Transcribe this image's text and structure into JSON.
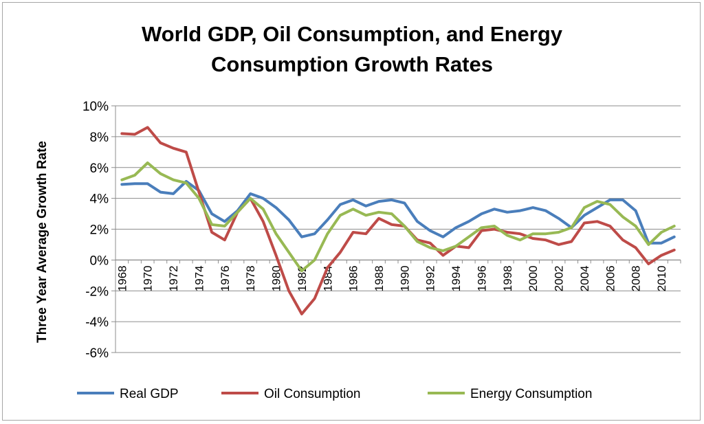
{
  "chart_data": {
    "type": "line",
    "title_line1": "World GDP,  Oil Consumption, and Energy",
    "title_line2": "Consumption Growth Rates",
    "ylabel": "Three Year Average Growth Rate",
    "xlabel": "",
    "ylim": [
      -6,
      10
    ],
    "yticks": [
      "10%",
      "8%",
      "6%",
      "4%",
      "2%",
      "0%",
      "-2%",
      "-4%",
      "-6%"
    ],
    "ytick_values": [
      10,
      8,
      6,
      4,
      2,
      0,
      -2,
      -4,
      -6
    ],
    "x": [
      1968,
      1969,
      1970,
      1971,
      1972,
      1973,
      1974,
      1975,
      1976,
      1977,
      1978,
      1979,
      1980,
      1981,
      1982,
      1983,
      1984,
      1985,
      1986,
      1987,
      1988,
      1989,
      1990,
      1991,
      1992,
      1993,
      1994,
      1995,
      1996,
      1997,
      1998,
      1999,
      2000,
      2001,
      2002,
      2003,
      2004,
      2005,
      2006,
      2007,
      2008,
      2009,
      2010,
      2011
    ],
    "xtick_labels": [
      "1968",
      "1970",
      "1972",
      "1974",
      "1976",
      "1978",
      "1980",
      "1982",
      "1984",
      "1986",
      "1988",
      "1990",
      "1992",
      "1994",
      "1996",
      "1998",
      "2000",
      "2002",
      "2004",
      "2006",
      "2008",
      "2010"
    ],
    "xtick_years": [
      1968,
      1970,
      1972,
      1974,
      1976,
      1978,
      1980,
      1982,
      1984,
      1986,
      1988,
      1990,
      1992,
      1994,
      1996,
      1998,
      2000,
      2002,
      2004,
      2006,
      2008,
      2010
    ],
    "grid": true,
    "legend_position": "bottom",
    "series": [
      {
        "name": "Real GDP",
        "color": "#4a7ebb",
        "values": [
          4.9,
          4.95,
          4.95,
          4.4,
          4.3,
          5.1,
          4.5,
          3.0,
          2.5,
          3.2,
          4.3,
          4.0,
          3.4,
          2.6,
          1.5,
          1.7,
          2.6,
          3.6,
          3.9,
          3.5,
          3.8,
          3.9,
          3.7,
          2.5,
          1.9,
          1.5,
          2.1,
          2.5,
          3.0,
          3.3,
          3.1,
          3.2,
          3.4,
          3.2,
          2.7,
          2.1,
          2.9,
          3.4,
          3.9,
          3.9,
          3.2,
          1.1,
          1.1,
          1.5
        ]
      },
      {
        "name": "Oil Consumption",
        "color": "#be4b48",
        "values": [
          8.2,
          8.15,
          8.6,
          7.6,
          7.25,
          7.0,
          4.4,
          1.8,
          1.3,
          3.1,
          4.0,
          2.5,
          0.3,
          -2.0,
          -3.5,
          -2.5,
          -0.5,
          0.5,
          1.8,
          1.7,
          2.7,
          2.3,
          2.2,
          1.3,
          1.1,
          0.3,
          0.9,
          0.8,
          1.9,
          2.0,
          1.8,
          1.7,
          1.4,
          1.3,
          1.0,
          1.2,
          2.4,
          2.5,
          2.2,
          1.3,
          0.8,
          -0.25,
          0.3,
          0.65
        ]
      },
      {
        "name": "Energy Consumption",
        "color": "#98b954",
        "values": [
          5.2,
          5.5,
          6.3,
          5.6,
          5.2,
          5.0,
          4.0,
          2.3,
          2.2,
          3.1,
          4.0,
          3.3,
          1.7,
          0.5,
          -0.7,
          0.0,
          1.7,
          2.9,
          3.3,
          2.9,
          3.1,
          3.0,
          2.2,
          1.2,
          0.8,
          0.6,
          0.9,
          1.5,
          2.1,
          2.2,
          1.6,
          1.3,
          1.7,
          1.7,
          1.8,
          2.1,
          3.4,
          3.8,
          3.6,
          2.8,
          2.2,
          1.0,
          1.8,
          2.2
        ]
      }
    ]
  }
}
